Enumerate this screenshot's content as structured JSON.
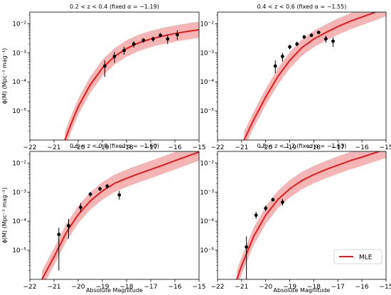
{
  "figure": {
    "xlabel": "Absolute Magnitude",
    "ylabel": "ϕ(M) (Mpc⁻³ mag⁻¹)"
  },
  "legend": {
    "label": "MLE"
  },
  "colors": {
    "curve": "#e41a1c",
    "band": "#f4a3a3",
    "points": "#000000"
  },
  "chart_data": [
    {
      "type": "line",
      "title": "0.2 < z < 0.4 (fixed α = −1.19)",
      "xlim": [
        -22,
        -15
      ],
      "ylim_log10": [
        -6,
        -1.6
      ],
      "y_scale": "log",
      "x_ticks": [
        "−22",
        "−21",
        "−20",
        "−19",
        "−18",
        "−17",
        "−16",
        "−15"
      ],
      "y_ticks": [
        {
          "exp": -5,
          "label": "10⁻⁵"
        },
        {
          "exp": -4,
          "label": "10⁻⁴"
        },
        {
          "exp": -3,
          "label": "10⁻³"
        },
        {
          "exp": -2,
          "label": "10⁻²"
        }
      ],
      "mle_curve": {
        "name": "MLE",
        "x": [
          -20.55,
          -20.3,
          -20.0,
          -19.5,
          -19.0,
          -18.5,
          -18.0,
          -17.5,
          -17.0,
          -16.5,
          -16.0,
          -15.5,
          -15.0
        ],
        "y": [
          1e-06,
          3.5e-06,
          1.4e-05,
          8e-05,
          0.0003,
          0.00075,
          0.0014,
          0.0022,
          0.003,
          0.0038,
          0.0046,
          0.0054,
          0.0062
        ]
      },
      "band_width_dex": 0.28,
      "points": {
        "x": [
          -18.9,
          -18.5,
          -18.1,
          -17.7,
          -17.3,
          -16.9,
          -16.6,
          -16.3,
          -15.9
        ],
        "y": [
          0.00035,
          0.00075,
          0.0012,
          0.002,
          0.0027,
          0.003,
          0.004,
          0.003,
          0.0042
        ],
        "y_low": [
          0.00015,
          0.00045,
          0.00085,
          0.0015,
          0.0022,
          0.0024,
          0.0034,
          0.002,
          0.0028
        ],
        "y_high": [
          0.00055,
          0.00105,
          0.0016,
          0.0025,
          0.0032,
          0.0036,
          0.0048,
          0.0042,
          0.006
        ]
      }
    },
    {
      "type": "line",
      "title": "0.4 < z < 0.6 (fixed α = −1.55)",
      "xlim": [
        -22,
        -15
      ],
      "ylim_log10": [
        -6,
        -1.6
      ],
      "y_scale": "log",
      "x_ticks": [
        "−22",
        "−21",
        "−20",
        "−19",
        "−18",
        "−17",
        "−16",
        "−15"
      ],
      "y_ticks": [
        {
          "exp": -5,
          "label": "10⁻⁵"
        },
        {
          "exp": -4,
          "label": "10⁻⁴"
        },
        {
          "exp": -3,
          "label": "10⁻³"
        },
        {
          "exp": -2,
          "label": "10⁻²"
        }
      ],
      "mle_curve": {
        "name": "MLE",
        "x": [
          -20.9,
          -20.5,
          -20.0,
          -19.5,
          -19.0,
          -18.5,
          -18.0,
          -17.5,
          -17.0,
          -16.5,
          -16.0,
          -15.5,
          -15.0
        ],
        "y": [
          1e-06,
          5e-06,
          3e-05,
          0.00015,
          0.00055,
          0.0015,
          0.003,
          0.005,
          0.008,
          0.012,
          0.017,
          0.024,
          0.035
        ]
      },
      "band_width_dex": 0.28,
      "points": {
        "x": [
          -19.6,
          -19.3,
          -19.0,
          -18.7,
          -18.4,
          -18.1,
          -17.8,
          -17.5,
          -17.2
        ],
        "y": [
          0.00035,
          0.00075,
          0.0016,
          0.002,
          0.0035,
          0.004,
          0.005,
          0.003,
          0.0025
        ],
        "y_low": [
          0.0002,
          0.0005,
          0.0013,
          0.0017,
          0.003,
          0.0035,
          0.0044,
          0.0022,
          0.0016
        ],
        "y_high": [
          0.00055,
          0.001,
          0.0019,
          0.0024,
          0.004,
          0.0046,
          0.0057,
          0.0039,
          0.0034
        ]
      }
    },
    {
      "type": "line",
      "title": "0.6 < z < 0.8 (fixed α = −1.60)",
      "xlim": [
        -22,
        -15
      ],
      "ylim_log10": [
        -6,
        -1.6
      ],
      "y_scale": "log",
      "x_ticks": [
        "−22",
        "−21",
        "−20",
        "−19",
        "−18",
        "−17",
        "−16",
        "−15"
      ],
      "y_ticks": [
        {
          "exp": -5,
          "label": "10⁻⁵"
        },
        {
          "exp": -4,
          "label": "10⁻⁴"
        },
        {
          "exp": -3,
          "label": "10⁻³"
        },
        {
          "exp": -2,
          "label": "10⁻²"
        }
      ],
      "mle_curve": {
        "name": "MLE",
        "x": [
          -21.5,
          -21.0,
          -20.5,
          -20.0,
          -19.5,
          -19.0,
          -18.5,
          -18.0,
          -17.5,
          -17.0,
          -16.5,
          -16.0,
          -15.5,
          -15.0
        ],
        "y": [
          1e-06,
          6e-06,
          4e-05,
          0.00017,
          0.0005,
          0.0011,
          0.002,
          0.003,
          0.0043,
          0.006,
          0.0085,
          0.012,
          0.017,
          0.024
        ]
      },
      "band_width_dex": 0.3,
      "points": {
        "x": [
          -20.8,
          -20.4,
          -19.9,
          -19.5,
          -19.1,
          -18.8,
          -18.3
        ],
        "y": [
          3.5e-05,
          7e-05,
          0.0003,
          0.00085,
          0.0013,
          0.0016,
          0.0008
        ],
        "y_low": [
          2e-06,
          2.5e-05,
          0.0002,
          0.0007,
          0.0011,
          0.00135,
          0.00055
        ],
        "y_high": [
          6e-05,
          0.00012,
          0.00042,
          0.001,
          0.0015,
          0.0019,
          0.0011
        ]
      }
    },
    {
      "type": "line",
      "title": "0.8 < z < 1.2 (fixed α = −1.63)",
      "xlim": [
        -22,
        -15
      ],
      "ylim_log10": [
        -6,
        -1.6
      ],
      "y_scale": "log",
      "x_ticks": [
        "−22",
        "−21",
        "−20",
        "−19",
        "−18",
        "−17",
        "−16",
        "−15"
      ],
      "y_ticks": [
        {
          "exp": -5,
          "label": "10⁻⁵"
        },
        {
          "exp": -4,
          "label": "10⁻⁴"
        },
        {
          "exp": -3,
          "label": "10⁻³"
        },
        {
          "exp": -2,
          "label": "10⁻²"
        }
      ],
      "mle_curve": {
        "name": "MLE",
        "x": [
          -21.2,
          -21.0,
          -20.5,
          -20.0,
          -19.5,
          -19.0,
          -18.5,
          -18.0,
          -17.5,
          -17.0,
          -16.5,
          -16.0,
          -15.5,
          -15.0
        ],
        "y": [
          1e-06,
          3e-06,
          3e-05,
          0.00016,
          0.00055,
          0.0013,
          0.0025,
          0.004,
          0.006,
          0.0085,
          0.012,
          0.016,
          0.022,
          0.03
        ]
      },
      "band_width_dex": 0.3,
      "points": {
        "x": [
          -20.8,
          -20.4,
          -20.0,
          -19.7,
          -19.3
        ],
        "y": [
          1.3e-05,
          0.00016,
          0.00028,
          0.00055,
          0.00045
        ],
        "y_low": [
          1e-06,
          0.00012,
          0.00022,
          0.00047,
          0.00034
        ],
        "y_high": [
          3e-05,
          0.00021,
          0.00035,
          0.00064,
          0.00058
        ]
      }
    }
  ]
}
